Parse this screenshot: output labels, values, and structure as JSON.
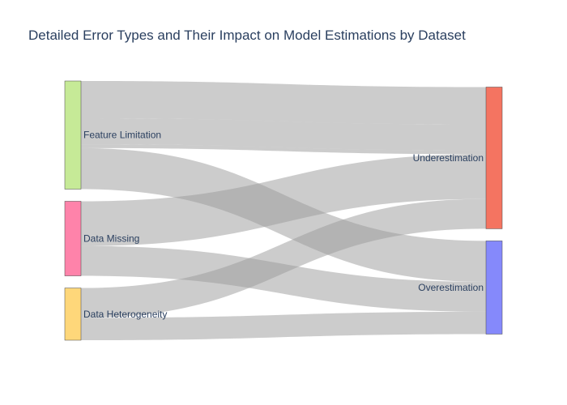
{
  "chart_data": {
    "type": "sankey",
    "title": "Detailed Error Types and Their Impact on Model Estimations by Dataset",
    "nodes": [
      {
        "id": "feature_limitation",
        "label": "Feature Limitation",
        "color": "#c6ea97",
        "side": "source"
      },
      {
        "id": "data_missing",
        "label": "Data Missing",
        "color": "#fe83aa",
        "side": "source"
      },
      {
        "id": "data_heterogeneity",
        "label": "Data Heterogeneity",
        "color": "#fed77a",
        "side": "source"
      },
      {
        "id": "underestimation",
        "label": "Underestimation",
        "color": "#f47461",
        "side": "target"
      },
      {
        "id": "overestimation",
        "label": "Overestimation",
        "color": "#8589fb",
        "side": "target"
      }
    ],
    "links": [
      {
        "source": "feature_limitation",
        "target": "underestimation",
        "value": 10
      },
      {
        "source": "feature_limitation",
        "target": "underestimation",
        "value": 7
      },
      {
        "source": "feature_limitation",
        "target": "underestimation",
        "value": 1
      },
      {
        "source": "feature_limitation",
        "target": "overestimation",
        "value": 11
      },
      {
        "source": "data_missing",
        "target": "underestimation",
        "value": 12
      },
      {
        "source": "data_missing",
        "target": "overestimation",
        "value": 8
      },
      {
        "source": "data_heterogeneity",
        "target": "underestimation",
        "value": 8
      },
      {
        "source": "data_heterogeneity",
        "target": "overestimation",
        "value": 6
      }
    ],
    "link_color": "#999999",
    "link_opacity": 0.5
  }
}
